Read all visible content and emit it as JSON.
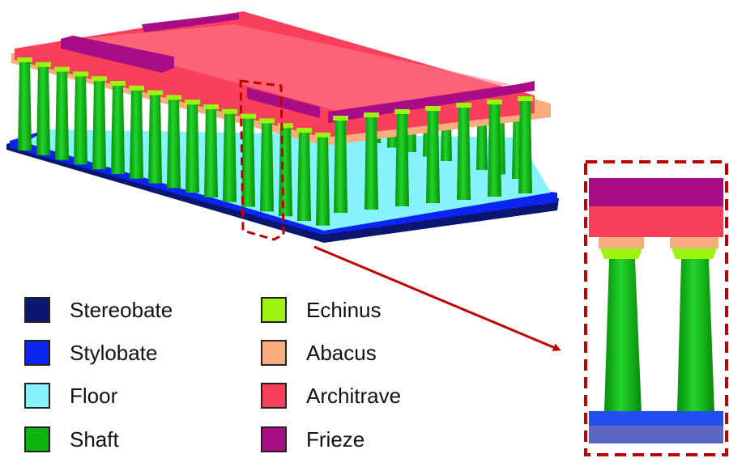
{
  "legend": [
    {
      "label": "Stereobate",
      "color": "#0a1670"
    },
    {
      "label": "Stylobate",
      "color": "#0c24f0"
    },
    {
      "label": "Floor",
      "color": "#86f2fb"
    },
    {
      "label": "Shaft",
      "color": "#0eb30e"
    },
    {
      "label": "Echinus",
      "color": "#9cf30e"
    },
    {
      "label": "Abacus",
      "color": "#f9ad7f"
    },
    {
      "label": "Architrave",
      "color": "#fa3f5a"
    },
    {
      "label": "Frieze",
      "color": "#a80d86"
    }
  ],
  "highlight_color": "#c00000",
  "arrow_color": "#c00000"
}
